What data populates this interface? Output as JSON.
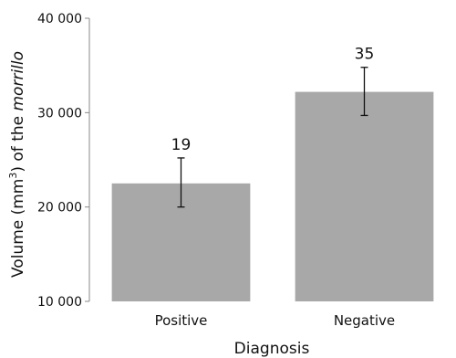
{
  "chart_data": {
    "type": "bar",
    "categories": [
      "Positive",
      "Negative"
    ],
    "values": [
      22500,
      32200
    ],
    "error_low": [
      20000,
      29700
    ],
    "error_high": [
      25200,
      34800
    ],
    "data_labels": [
      "19",
      "35"
    ],
    "xlabel": "Diagnosis",
    "ylabel_prefix": "Volume (mm",
    "ylabel_sup": "3",
    "ylabel_mid": ") of the ",
    "ylabel_italic": "morrillo",
    "ylim": [
      10000,
      40000
    ],
    "yticks": [
      10000,
      20000,
      30000,
      40000
    ],
    "ytick_labels": [
      "10 000",
      "20 000",
      "30 000",
      "40 000"
    ],
    "grid": false,
    "legend": "none",
    "bar_color": "#a8a8a8",
    "axis_color": "#888888"
  }
}
